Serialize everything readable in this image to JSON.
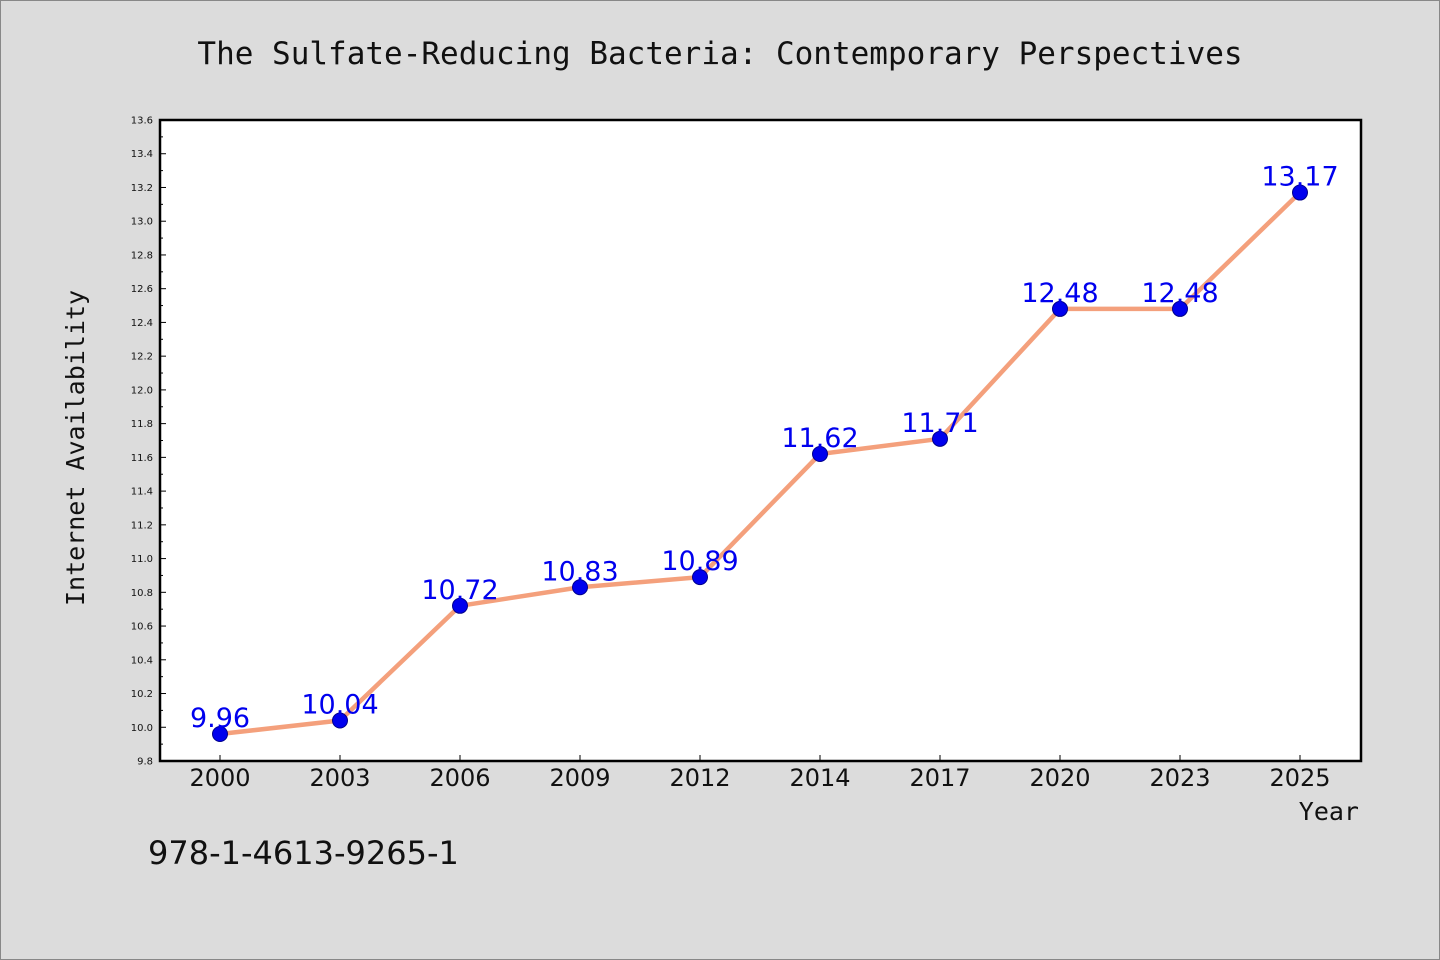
{
  "chart_data": {
    "type": "line",
    "title": "The Sulfate-Reducing Bacteria: Contemporary Perspectives",
    "xlabel": "Year",
    "ylabel": "Internet Availability",
    "categories": [
      "2000",
      "2003",
      "2006",
      "2009",
      "2012",
      "2014",
      "2017",
      "2020",
      "2023",
      "2025"
    ],
    "series": [
      {
        "values": [
          9.96,
          10.04,
          10.72,
          10.83,
          10.89,
          11.62,
          11.71,
          12.48,
          12.48,
          13.17
        ],
        "labels": [
          "9.96",
          "10.04",
          "10.72",
          "10.83",
          "10.89",
          "11.62",
          "11.71",
          "12.48",
          "12.48",
          "13.17"
        ],
        "line_color": "#f4a07c",
        "marker_color": "#0000ee"
      }
    ],
    "ylim": [
      9.8,
      13.6
    ],
    "yticks": [
      "9.8",
      "10.0",
      "10.2",
      "10.4",
      "10.6",
      "10.8",
      "11.0",
      "11.2",
      "11.4",
      "11.6",
      "11.8",
      "12.0",
      "12.2",
      "12.4",
      "12.6",
      "12.8",
      "13.0",
      "13.2",
      "13.4",
      "13.6"
    ],
    "grid": false,
    "legend": "none"
  },
  "footer": {
    "isbn": "978-1-4613-9265-1"
  },
  "colors": {
    "background": "#dcdcdc",
    "plot_background": "#ffffff",
    "axes": "#000000"
  }
}
